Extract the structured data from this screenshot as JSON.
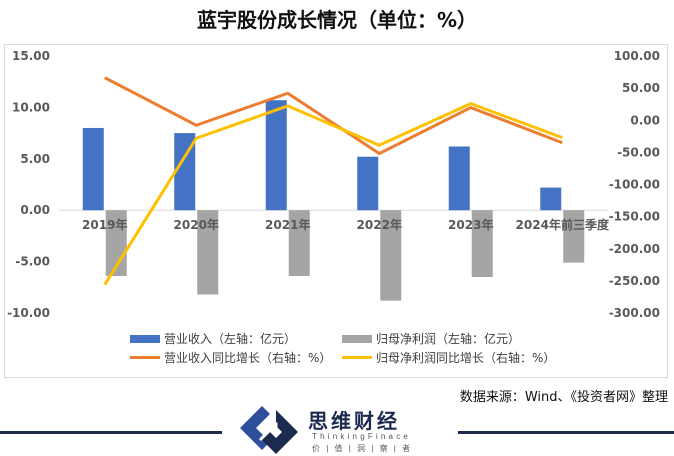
{
  "chart_data": {
    "type": "bar",
    "title": "蓝宇股份成长情况（单位：%）",
    "categories": [
      "2019年",
      "2020年",
      "2021年",
      "2022年",
      "2023年",
      "2024年前三季度"
    ],
    "left_axis": {
      "ylim": [
        -10,
        15
      ],
      "ticks": [
        "15.00",
        "10.00",
        "5.00",
        "0.00",
        "-5.00",
        "-10.00"
      ],
      "tick_values": [
        15,
        10,
        5,
        0,
        -5,
        -10
      ]
    },
    "right_axis": {
      "ylim": [
        -300,
        100
      ],
      "ticks": [
        "100.00",
        "50.00",
        "0.00",
        "-50.00",
        "-100.00",
        "-150.00",
        "-200.00",
        "-250.00",
        "-300.00"
      ],
      "tick_values": [
        100,
        50,
        0,
        -50,
        -100,
        -150,
        -200,
        -250,
        -300
      ]
    },
    "series": [
      {
        "name": "营业收入（左轴：亿元）",
        "type": "bar",
        "axis": "left",
        "color": "#4472C4",
        "values": [
          8.0,
          7.5,
          10.7,
          5.2,
          6.2,
          2.2
        ]
      },
      {
        "name": "归母净利润（左轴：亿元）",
        "type": "bar",
        "axis": "left",
        "color": "#A5A5A5",
        "values": [
          -6.4,
          -8.2,
          -6.4,
          -8.8,
          -6.5,
          -5.1
        ]
      },
      {
        "name": "营业收入同比增长（右轴：%）",
        "type": "line",
        "axis": "right",
        "color": "#ED7D31",
        "values": [
          66.3,
          -7.8,
          42.0,
          -51.8,
          19.7,
          -35.0
        ]
      },
      {
        "name": "归母净利润同比增长（右轴：%）",
        "type": "line",
        "axis": "right",
        "color": "#FFC000",
        "values": [
          -256.0,
          -28.0,
          22.3,
          -38.9,
          25.9,
          -27.0
        ]
      }
    ],
    "legend": "bottom",
    "grid": false
  },
  "source": "数据来源：Wind、《投资者网》整理",
  "brand": {
    "name": "思维财经",
    "english": "ThinkingFinace",
    "slogan": "价 | 值 | 洞 | 察 | 者"
  }
}
